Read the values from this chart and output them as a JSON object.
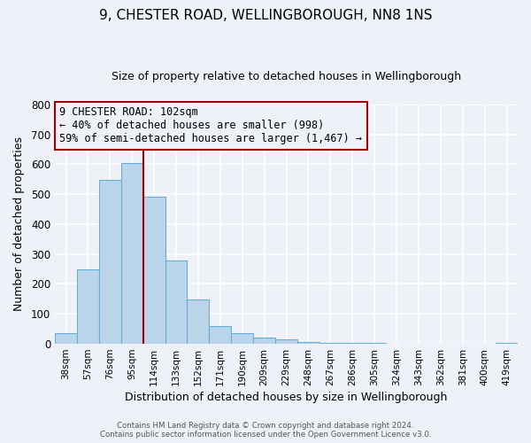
{
  "title": "9, CHESTER ROAD, WELLINGBOROUGH, NN8 1NS",
  "subtitle": "Size of property relative to detached houses in Wellingborough",
  "xlabel": "Distribution of detached houses by size in Wellingborough",
  "ylabel": "Number of detached properties",
  "bin_labels": [
    "38sqm",
    "57sqm",
    "76sqm",
    "95sqm",
    "114sqm",
    "133sqm",
    "152sqm",
    "171sqm",
    "190sqm",
    "209sqm",
    "229sqm",
    "248sqm",
    "267sqm",
    "286sqm",
    "305sqm",
    "324sqm",
    "343sqm",
    "362sqm",
    "381sqm",
    "400sqm",
    "419sqm"
  ],
  "bar_heights": [
    35,
    248,
    548,
    605,
    493,
    277,
    148,
    60,
    35,
    20,
    15,
    5,
    4,
    4,
    2,
    0,
    0,
    0,
    0,
    0,
    3
  ],
  "bar_color": "#bad4ea",
  "bar_edge_color": "#6aaed6",
  "vline_color": "#aa0000",
  "annotation_line1": "9 CHESTER ROAD: 102sqm",
  "annotation_line2": "← 40% of detached houses are smaller (998)",
  "annotation_line3": "59% of semi-detached houses are larger (1,467) →",
  "ylim": [
    0,
    800
  ],
  "yticks": [
    0,
    100,
    200,
    300,
    400,
    500,
    600,
    700,
    800
  ],
  "background_color": "#eef2f8",
  "grid_color": "#ffffff",
  "footer_line1": "Contains HM Land Registry data © Crown copyright and database right 2024.",
  "footer_line2": "Contains public sector information licensed under the Open Government Licence v3.0."
}
